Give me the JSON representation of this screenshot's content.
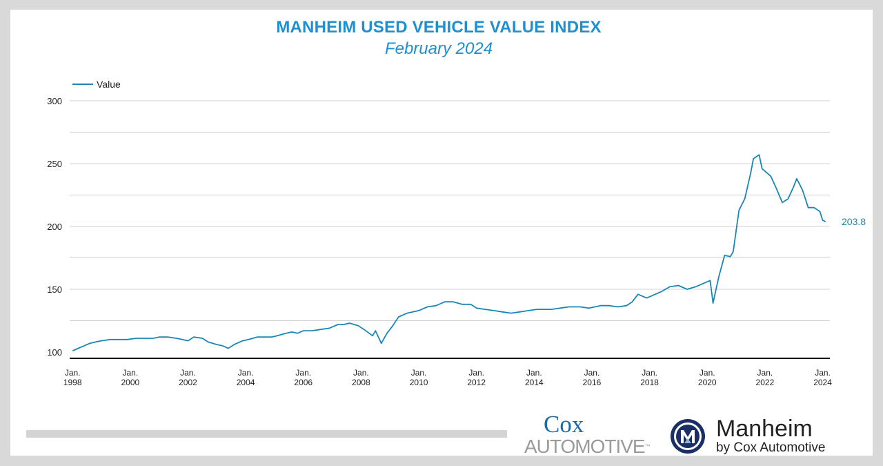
{
  "header": {
    "title": "MANHEIM USED VEHICLE VALUE INDEX",
    "subtitle": "February 2024"
  },
  "colors": {
    "accent": "#1f8fce",
    "line": "#1a86b5",
    "grid": "#d0d0d0",
    "axis": "#111111"
  },
  "chart_data": {
    "type": "line",
    "title": "MANHEIM USED VEHICLE VALUE INDEX",
    "subtitle": "February 2024",
    "xlabel": "",
    "ylabel": "",
    "ylim": [
      100,
      300
    ],
    "xlim": [
      1997.9,
      2024.25
    ],
    "yticks": [
      100,
      150,
      200,
      250,
      300
    ],
    "grid": true,
    "legend": {
      "placement": "top-left",
      "entries": [
        "Value"
      ]
    },
    "last_value_label": "203.8",
    "x_tick_labels": [
      {
        "line1": "Jan.",
        "line2": "1998",
        "year": 1998
      },
      {
        "line1": "Jan.",
        "line2": "2000",
        "year": 2000
      },
      {
        "line1": "Jan.",
        "line2": "2002",
        "year": 2002
      },
      {
        "line1": "Jan.",
        "line2": "2004",
        "year": 2004
      },
      {
        "line1": "Jan.",
        "line2": "2006",
        "year": 2006
      },
      {
        "line1": "Jan.",
        "line2": "2008",
        "year": 2008
      },
      {
        "line1": "Jan.",
        "line2": "2010",
        "year": 2010
      },
      {
        "line1": "Jan.",
        "line2": "2012",
        "year": 2012
      },
      {
        "line1": "Jan.",
        "line2": "2014",
        "year": 2014
      },
      {
        "line1": "Jan.",
        "line2": "2016",
        "year": 2016
      },
      {
        "line1": "Jan.",
        "line2": "2018",
        "year": 2018
      },
      {
        "line1": "Jan.",
        "line2": "2020",
        "year": 2020
      },
      {
        "line1": "Jan.",
        "line2": "2022",
        "year": 2022
      },
      {
        "line1": "Jan.",
        "line2": "2024",
        "year": 2024
      }
    ],
    "series": [
      {
        "name": "Value",
        "x": [
          1998.0,
          1998.2,
          1998.4,
          1998.6,
          1998.8,
          1999.0,
          1999.3,
          1999.6,
          1999.9,
          2000.2,
          2000.5,
          2000.8,
          2001.0,
          2001.3,
          2001.6,
          2001.8,
          2002.0,
          2002.2,
          2002.5,
          2002.7,
          2003.0,
          2003.2,
          2003.4,
          2003.6,
          2003.9,
          2004.1,
          2004.4,
          2004.6,
          2004.9,
          2005.1,
          2005.4,
          2005.6,
          2005.8,
          2006.0,
          2006.3,
          2006.6,
          2006.9,
          2007.2,
          2007.4,
          2007.6,
          2007.9,
          2008.1,
          2008.4,
          2008.5,
          2008.7,
          2008.9,
          2009.1,
          2009.3,
          2009.6,
          2009.8,
          2010.0,
          2010.3,
          2010.6,
          2010.9,
          2011.2,
          2011.5,
          2011.8,
          2012.0,
          2012.3,
          2012.6,
          2012.9,
          2013.2,
          2013.5,
          2013.8,
          2014.1,
          2014.4,
          2014.6,
          2014.9,
          2015.2,
          2015.6,
          2015.9,
          2016.1,
          2016.3,
          2016.6,
          2016.9,
          2017.2,
          2017.4,
          2017.6,
          2017.9,
          2018.1,
          2018.4,
          2018.7,
          2019.0,
          2019.3,
          2019.6,
          2019.9,
          2020.1,
          2020.2,
          2020.4,
          2020.6,
          2020.8,
          2020.9,
          2021.1,
          2021.3,
          2021.5,
          2021.6,
          2021.8,
          2021.9,
          2022.0,
          2022.2,
          2022.4,
          2022.6,
          2022.8,
          2023.0,
          2023.1,
          2023.3,
          2023.5,
          2023.7,
          2023.9,
          2024.0,
          2024.1
        ],
        "values": [
          101,
          103,
          105,
          107,
          108,
          109,
          110,
          110,
          110,
          111,
          111,
          111,
          112,
          112,
          111,
          110,
          109,
          112,
          111,
          108,
          106,
          105,
          103,
          106,
          109,
          110,
          112,
          112,
          112,
          113,
          115,
          116,
          115,
          117,
          117,
          118,
          119,
          122,
          122,
          123,
          121,
          118,
          113,
          117,
          107,
          115,
          121,
          128,
          131,
          132,
          133,
          136,
          137,
          140,
          140,
          138,
          138,
          135,
          134,
          133,
          132,
          131,
          132,
          133,
          134,
          134,
          134,
          135,
          136,
          136,
          135,
          136,
          137,
          137,
          136,
          137,
          140,
          146,
          143,
          145,
          148,
          152,
          153,
          150,
          152,
          155,
          157,
          139,
          160,
          177,
          176,
          180,
          213,
          222,
          242,
          254,
          257,
          246,
          244,
          240,
          230,
          219,
          222,
          232,
          238,
          229,
          215,
          215,
          212,
          205,
          203.8
        ]
      }
    ]
  },
  "footer": {
    "cox_line1": "Cox",
    "cox_line2": "AUTOMOTIVE",
    "cox_tm": "™",
    "manheim_name": "Manheim",
    "manheim_sub": "by Cox Automotive"
  }
}
